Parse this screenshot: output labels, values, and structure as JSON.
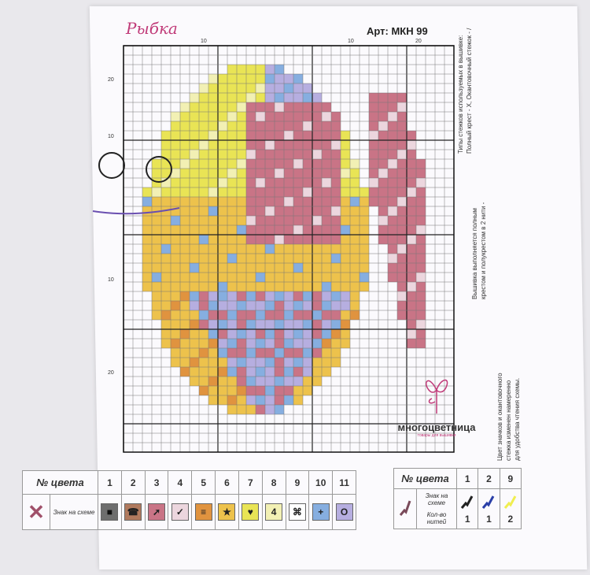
{
  "header": {
    "title": "Рыбка",
    "article": "Арт: МКН 99"
  },
  "grid_ticks": {
    "top_left": "10",
    "top_mid": "10",
    "top_right": "20",
    "left_top": "20",
    "left_mid": "10",
    "left_low": "10",
    "left_bottom": "20"
  },
  "side_notes": {
    "stitch_types": "Типы стежков используемых в вышивке:",
    "full_cross": "Полный крест - X, Окантовочный стежок - /",
    "technique_1": "Вышивка выполняется полным",
    "technique_2": "крестом и полукрестом в 2 нити -",
    "color_note_1": "Цвет значков и окантовочного",
    "color_note_2": "стежка изменен намеренно",
    "color_note_3": "для удобства чтения схемы."
  },
  "logo": {
    "name": "многоцветница",
    "tagline": "товары для вышивки"
  },
  "legend_cross": {
    "header": "№ цвета",
    "symbol_label": "Знак на схеме",
    "icon": "cross-stitch-icon",
    "colors": [
      {
        "num": "1",
        "symbol": "■",
        "bg": "#6e6e6e",
        "fg": "#111"
      },
      {
        "num": "2",
        "symbol": "☎",
        "bg": "#b07a5e",
        "fg": "#222"
      },
      {
        "num": "3",
        "symbol": "➚",
        "bg": "#c97486",
        "fg": "#222"
      },
      {
        "num": "4",
        "symbol": "✓",
        "bg": "#ecd6de",
        "fg": "#222"
      },
      {
        "num": "5",
        "symbol": "≡",
        "bg": "#e0933f",
        "fg": "#222"
      },
      {
        "num": "6",
        "symbol": "★",
        "bg": "#edc24c",
        "fg": "#222"
      },
      {
        "num": "7",
        "symbol": "♥",
        "bg": "#e9e455",
        "fg": "#222"
      },
      {
        "num": "8",
        "symbol": "4",
        "bg": "#f2f0b4",
        "fg": "#222"
      },
      {
        "num": "9",
        "symbol": "⌘",
        "bg": "#ffffff",
        "fg": "#222"
      },
      {
        "num": "10",
        "symbol": "+",
        "bg": "#86aee0",
        "fg": "#222"
      },
      {
        "num": "11",
        "symbol": "O",
        "bg": "#b6aee0",
        "fg": "#222"
      }
    ]
  },
  "legend_backstitch": {
    "header": "№ цвета",
    "symbol_label": "Знак на схеме",
    "threads_label": "Кол-во нитей",
    "icon": "backstitch-icon",
    "colors": [
      {
        "num": "1",
        "color": "#222222",
        "threads": "1"
      },
      {
        "num": "2",
        "color": "#2a3fa8",
        "threads": "1"
      },
      {
        "num": "9",
        "color": "#f0ee50",
        "threads": "2"
      }
    ]
  }
}
